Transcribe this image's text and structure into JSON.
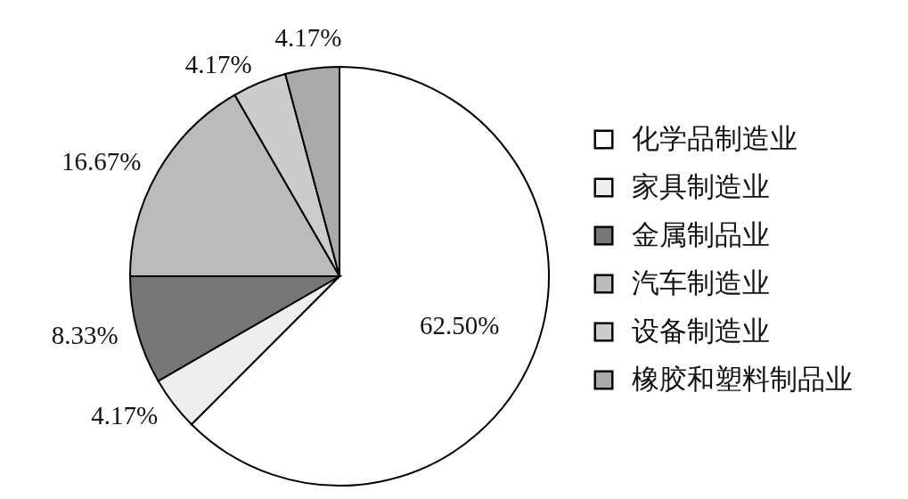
{
  "chart_data": {
    "type": "pie",
    "categories": [
      "化学品制造业",
      "家具制造业",
      "金属制品业",
      "汽车制造业",
      "设备制造业",
      "橡胶和塑料制品业"
    ],
    "values": [
      62.5,
      4.17,
      8.33,
      16.67,
      4.17,
      4.17
    ],
    "value_labels": [
      "62.50%",
      "4.17%",
      "8.33%",
      "16.67%",
      "4.17%",
      "4.17%"
    ],
    "colors": [
      "#ffffff",
      "#eeeeee",
      "#777777",
      "#bbbbbb",
      "#cccccc",
      "#aaaaaa"
    ],
    "legend": "right"
  }
}
